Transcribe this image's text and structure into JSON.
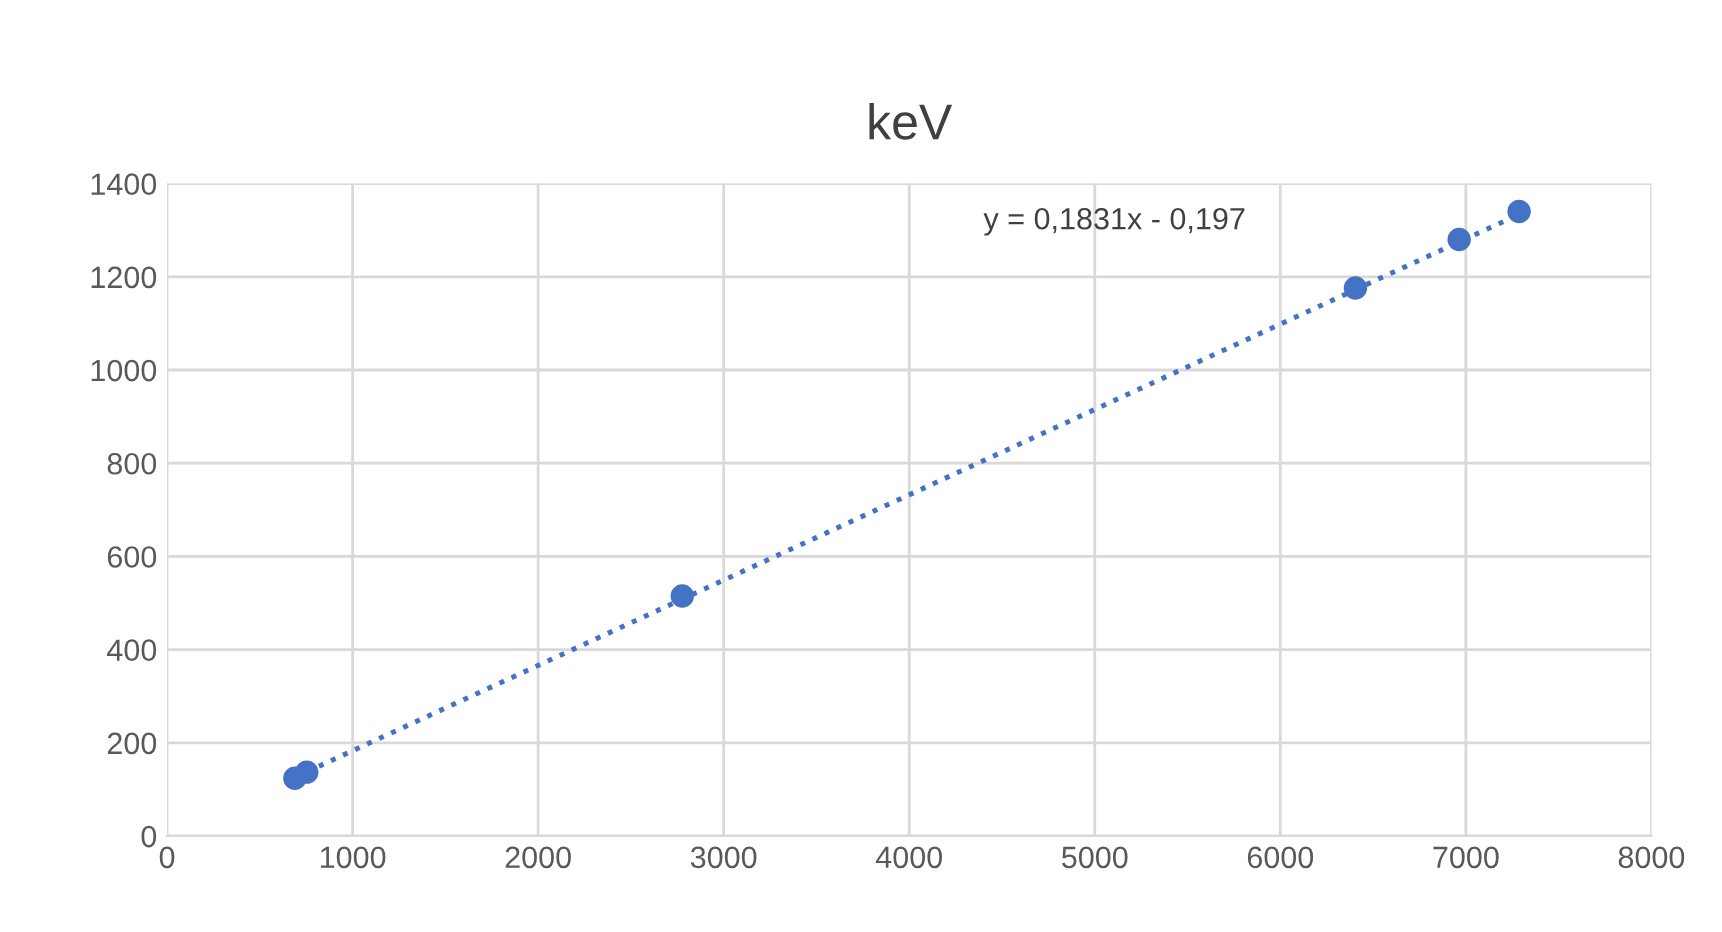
{
  "chart_data": {
    "type": "scatter",
    "title": "keV",
    "series": [
      {
        "color": "#4472c4",
        "x": [
          689,
          753,
          2777,
          6405,
          6964,
          7287
        ],
        "values": [
          124,
          137,
          515,
          1176,
          1280,
          1340
        ],
        "marker": "circle"
      },
      {
        "type": "line",
        "color": "#4472c4",
        "x": [
          689,
          7287
        ],
        "values": [
          126,
          1334
        ],
        "line_style": "dotted",
        "marker": "none"
      }
    ],
    "xlim": [
      0,
      8000
    ],
    "xticks": [
      0,
      1000,
      2000,
      3000,
      4000,
      5000,
      6000,
      7000,
      8000
    ],
    "ylim": [
      0,
      1400
    ],
    "yticks": [
      0,
      200,
      400,
      600,
      800,
      1000,
      1200,
      1400
    ],
    "grid": true,
    "legend": false,
    "annotations": [
      "y = 0,1831x - 0,197"
    ]
  }
}
